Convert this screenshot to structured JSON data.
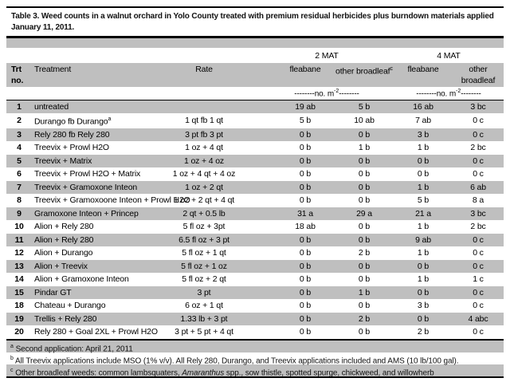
{
  "title": {
    "line1": "Table 3. Weed counts in a walnut orchard in Yolo County treated with premium residual herbicides plus burndown materials applied",
    "line2": "January 11, 2011."
  },
  "table": {
    "groups": {
      "mat2": "2 MAT",
      "mat4": "4 MAT"
    },
    "headers": {
      "trt": "Trt no.",
      "treatment": "Treatment",
      "rate": "Rate",
      "fleabane": "fleabane",
      "other": "other broadleaf",
      "other_sup": "c"
    },
    "units": {
      "left": "--------no. m",
      "sup": "-2",
      "right": "--------"
    },
    "rows": [
      {
        "no": "1",
        "treatment": "untreated",
        "sup": "",
        "rate": "",
        "f2": "19 ab",
        "o2": "5 b",
        "f4": "16 ab",
        "o4": "3 bc"
      },
      {
        "no": "2",
        "treatment": "Durango fb Durango",
        "sup": "a",
        "rate": "1 qt fb 1 qt",
        "f2": "5 b",
        "o2": "10 ab",
        "f4": "7 ab",
        "o4": "0 c"
      },
      {
        "no": "3",
        "treatment": "Rely 280 fb Rely 280",
        "sup": "",
        "rate": "3 pt fb 3 pt",
        "f2": "0 b",
        "o2": "0 b",
        "f4": "3 b",
        "o4": "0 c"
      },
      {
        "no": "4",
        "treatment": "Treevix + Prowl H2O",
        "sup": "",
        "rate": "1 oz + 4 qt",
        "f2": "0 b",
        "o2": "1 b",
        "f4": "1 b",
        "o4": "2 bc"
      },
      {
        "no": "5",
        "treatment": "Treevix + Matrix",
        "sup": "",
        "rate": "1 oz + 4 oz",
        "f2": "0 b",
        "o2": "0 b",
        "f4": "0 b",
        "o4": "0 c"
      },
      {
        "no": "6",
        "treatment": "Treevix + Prowl H2O + Matrix",
        "sup": "",
        "rate": "1 oz + 4 qt + 4 oz",
        "f2": "0 b",
        "o2": "0 b",
        "f4": "0 b",
        "o4": "0 c"
      },
      {
        "no": "7",
        "treatment": "Treevix + Gramoxone Inteon",
        "sup": "",
        "rate": "1 oz + 2 qt",
        "f2": "0 b",
        "o2": "0 b",
        "f4": "1 b",
        "o4": "6 ab"
      },
      {
        "no": "8",
        "treatment": "Treevix + Gramoxoone Inteon + Prowl H2O",
        "sup": "",
        "rate": "1 oz + 2 qt + 4 qt",
        "f2": "0 b",
        "o2": "0 b",
        "f4": "5 b",
        "o4": "8 a"
      },
      {
        "no": "9",
        "treatment": "Gramoxone Inteon + Princep",
        "sup": "",
        "rate": "2 qt + 0.5 lb",
        "f2": "31 a",
        "o2": "29 a",
        "f4": "21 a",
        "o4": "3 bc"
      },
      {
        "no": "10",
        "treatment": "Alion + Rely 280",
        "sup": "",
        "rate": "5 fl oz + 3pt",
        "f2": "18 ab",
        "o2": "0 b",
        "f4": "1 b",
        "o4": "2 bc"
      },
      {
        "no": "11",
        "treatment": "Alion + Rely 280",
        "sup": "",
        "rate": "6.5 fl oz + 3 pt",
        "f2": "0 b",
        "o2": "0 b",
        "f4": "9 ab",
        "o4": "0 c"
      },
      {
        "no": "12",
        "treatment": "Alion + Durango",
        "sup": "",
        "rate": "5 fl oz + 1 qt",
        "f2": "0 b",
        "o2": "2 b",
        "f4": "1 b",
        "o4": "0 c"
      },
      {
        "no": "13",
        "treatment": "Alion + Treevix",
        "sup": "",
        "rate": "5 fl oz + 1 oz",
        "f2": "0 b",
        "o2": "0 b",
        "f4": "0 b",
        "o4": "0 c"
      },
      {
        "no": "14",
        "treatment": "Alion + Gramoxone Inteon",
        "sup": "",
        "rate": "5 fl oz + 2 qt",
        "f2": "0 b",
        "o2": "0 b",
        "f4": "1 b",
        "o4": "1 c"
      },
      {
        "no": "15",
        "treatment": "Pindar GT",
        "sup": "",
        "rate": "3 pt",
        "f2": "0 b",
        "o2": "1 b",
        "f4": "0 b",
        "o4": "0 c"
      },
      {
        "no": "18",
        "treatment": "Chateau + Durango",
        "sup": "",
        "rate": "6 oz + 1 qt",
        "f2": "0 b",
        "o2": "0 b",
        "f4": "3 b",
        "o4": "0 c"
      },
      {
        "no": "19",
        "treatment": "Trellis + Rely 280",
        "sup": "",
        "rate": "1.33 lb + 3 pt",
        "f2": "0 b",
        "o2": "2 b",
        "f4": "0 b",
        "o4": "4 abc"
      },
      {
        "no": "20",
        "treatment": "Rely 280 + Goal 2XL + Prowl H2O",
        "sup": "",
        "rate": "3 pt + 5 pt + 4 qt",
        "f2": "0 b",
        "o2": "0 b",
        "f4": "2 b",
        "o4": "0 c"
      }
    ]
  },
  "footnotes": {
    "a_sup": "a",
    "a": "Second application: April 21, 2011",
    "b_sup": "b",
    "b": "All Treevix applications include MSO (1% v/v). All Rely 280, Durango, and Treevix applications included  and AMS (10 lb/100 gal).",
    "c_sup": "c",
    "c_prefix": "Other broadleaf weeds: common lambsquaters, ",
    "c_italic": "Amaranthus",
    "c_suffix": " spp., sow thistle, spotted spurge, chickweed, and willowherb"
  },
  "colors": {
    "shaded_row": "#bfbfbf",
    "rule": "#000000",
    "background": "#ffffff"
  }
}
